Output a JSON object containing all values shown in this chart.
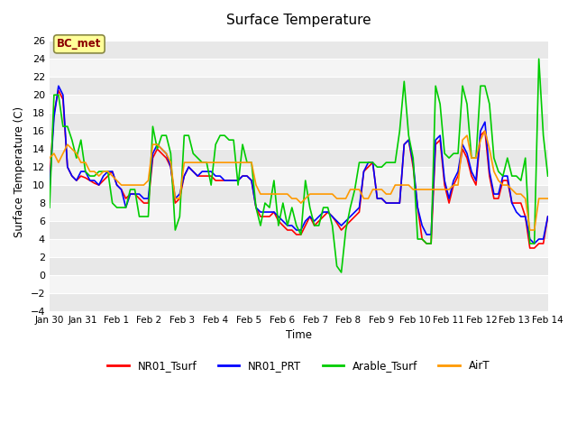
{
  "title": "Surface Temperature",
  "ylabel": "Surface Temperature (C)",
  "xlabel": "Time",
  "ylim": [
    -4,
    27
  ],
  "yticks": [
    -4,
    -2,
    0,
    2,
    4,
    6,
    8,
    10,
    12,
    14,
    16,
    18,
    20,
    22,
    24,
    26
  ],
  "xtick_labels": [
    "Jan 30",
    "Jan 31",
    "Feb 1",
    "Feb 2",
    "Feb 3",
    "Feb 4",
    "Feb 5",
    "Feb 6",
    "Feb 7",
    "Feb 8",
    "Feb 9",
    "Feb 10",
    "Feb 11",
    "Feb 12",
    "Feb 13",
    "Feb 14"
  ],
  "legend_labels": [
    "NR01_Tsurf",
    "NR01_PRT",
    "Arable_Tsurf",
    "AirT"
  ],
  "colors": [
    "#ff0000",
    "#0000ff",
    "#00cc00",
    "#ff9900"
  ],
  "annotation_text": "BC_met",
  "annotation_color": "#8b0000",
  "annotation_bg": "#ffff99",
  "background_color_light": "#e8e8e8",
  "background_color_dark": "#d0d0d0",
  "band_color1": "#e8e8e8",
  "band_color2": "#f5f5f5",
  "NR01_Tsurf": [
    10.3,
    18.0,
    20.5,
    19.5,
    12.0,
    11.0,
    10.5,
    11.0,
    10.8,
    10.5,
    10.2,
    10.0,
    10.5,
    11.0,
    11.5,
    10.0,
    9.5,
    8.5,
    9.0,
    9.0,
    8.5,
    8.0,
    8.0,
    13.0,
    14.0,
    13.5,
    13.0,
    12.0,
    8.0,
    8.5,
    11.0,
    12.0,
    11.5,
    11.0,
    11.0,
    11.0,
    11.0,
    10.5,
    10.5,
    10.5,
    10.5,
    10.5,
    10.5,
    11.0,
    11.0,
    10.5,
    7.5,
    6.5,
    6.5,
    6.5,
    7.0,
    6.0,
    5.5,
    5.0,
    5.0,
    4.5,
    4.5,
    5.5,
    6.5,
    5.5,
    6.0,
    6.5,
    7.0,
    6.5,
    5.8,
    5.0,
    5.5,
    6.0,
    6.5,
    7.0,
    11.5,
    12.0,
    12.5,
    8.5,
    8.5,
    8.0,
    8.0,
    8.0,
    8.0,
    14.5,
    15.0,
    12.0,
    7.5,
    4.0,
    3.5,
    3.5,
    14.5,
    15.0,
    10.0,
    8.0,
    10.0,
    11.0,
    14.0,
    13.0,
    11.0,
    10.0,
    15.5,
    16.0,
    11.0,
    8.5,
    8.5,
    10.5,
    10.5,
    8.0,
    8.0,
    8.0,
    6.5,
    3.0,
    3.0,
    3.5,
    3.5,
    6.5
  ],
  "NR01_PRT": [
    9.5,
    17.5,
    21.0,
    20.0,
    12.0,
    11.0,
    10.5,
    11.5,
    11.5,
    10.5,
    10.5,
    10.0,
    11.0,
    11.5,
    11.5,
    10.0,
    9.5,
    7.5,
    9.0,
    9.0,
    9.0,
    8.5,
    8.5,
    13.5,
    14.5,
    14.0,
    13.5,
    12.0,
    8.5,
    9.0,
    11.0,
    12.0,
    11.5,
    11.0,
    11.5,
    11.5,
    11.5,
    11.0,
    11.0,
    10.5,
    10.5,
    10.5,
    10.5,
    11.0,
    11.0,
    10.5,
    7.5,
    7.0,
    7.0,
    7.0,
    7.0,
    6.5,
    6.0,
    5.5,
    5.5,
    5.0,
    5.0,
    6.0,
    6.5,
    6.0,
    6.5,
    7.0,
    7.0,
    6.5,
    6.0,
    5.5,
    6.0,
    6.5,
    7.0,
    7.5,
    11.5,
    12.5,
    12.5,
    8.5,
    8.5,
    8.0,
    8.0,
    8.0,
    8.0,
    14.5,
    15.0,
    12.5,
    7.5,
    5.5,
    4.5,
    4.5,
    15.0,
    15.5,
    10.5,
    8.5,
    10.5,
    11.5,
    14.5,
    13.5,
    11.5,
    10.5,
    16.0,
    17.0,
    11.5,
    9.0,
    9.0,
    11.0,
    11.0,
    8.0,
    7.0,
    6.5,
    6.5,
    4.0,
    3.5,
    4.0,
    4.0,
    6.5
  ],
  "Arable_Tsurf": [
    7.5,
    20.0,
    20.0,
    16.5,
    16.5,
    15.0,
    13.0,
    15.0,
    11.5,
    11.0,
    11.0,
    11.5,
    11.5,
    11.5,
    8.0,
    7.5,
    7.5,
    7.5,
    9.5,
    9.5,
    6.5,
    6.5,
    6.5,
    16.5,
    14.0,
    15.5,
    15.5,
    13.5,
    5.0,
    6.5,
    15.5,
    15.5,
    13.5,
    13.0,
    12.5,
    12.5,
    10.0,
    14.5,
    15.5,
    15.5,
    15.0,
    15.0,
    10.0,
    14.5,
    12.5,
    12.5,
    7.5,
    5.5,
    8.0,
    7.5,
    10.5,
    5.5,
    8.0,
    5.5,
    7.5,
    5.5,
    4.5,
    10.5,
    7.5,
    5.5,
    5.5,
    7.5,
    7.5,
    5.5,
    1.0,
    0.3,
    5.0,
    7.5,
    9.5,
    12.5,
    12.5,
    12.5,
    12.5,
    12.0,
    12.0,
    12.5,
    12.5,
    12.5,
    16.0,
    21.5,
    15.5,
    13.0,
    4.0,
    4.0,
    3.5,
    3.5,
    21.0,
    19.0,
    13.5,
    13.0,
    13.5,
    13.5,
    21.0,
    19.0,
    13.0,
    13.0,
    21.0,
    21.0,
    19.0,
    13.0,
    11.5,
    11.0,
    13.0,
    11.0,
    11.0,
    10.5,
    13.0,
    3.5,
    3.5,
    24.0,
    15.5,
    11.0
  ],
  "AirT": [
    13.0,
    13.5,
    12.5,
    13.5,
    14.5,
    14.0,
    13.5,
    12.5,
    12.5,
    11.5,
    11.5,
    11.0,
    11.5,
    11.5,
    11.0,
    10.5,
    10.0,
    10.0,
    10.0,
    10.0,
    10.0,
    10.0,
    10.5,
    14.5,
    14.5,
    14.0,
    13.5,
    12.5,
    8.5,
    8.5,
    12.5,
    12.5,
    12.5,
    12.5,
    12.5,
    12.5,
    12.5,
    12.5,
    12.5,
    12.5,
    12.5,
    12.5,
    12.5,
    12.5,
    12.5,
    12.5,
    10.0,
    9.0,
    9.0,
    9.0,
    9.0,
    9.0,
    9.0,
    9.0,
    8.5,
    8.5,
    8.0,
    8.5,
    9.0,
    9.0,
    9.0,
    9.0,
    9.0,
    9.0,
    8.5,
    8.5,
    8.5,
    9.5,
    9.5,
    9.5,
    8.5,
    8.5,
    9.5,
    9.5,
    9.5,
    9.0,
    9.0,
    10.0,
    10.0,
    10.0,
    10.0,
    9.5,
    9.5,
    9.5,
    9.5,
    9.5,
    9.5,
    9.5,
    9.5,
    9.5,
    10.0,
    10.0,
    15.0,
    15.5,
    13.0,
    13.0,
    15.0,
    16.0,
    14.0,
    11.5,
    10.5,
    10.0,
    10.0,
    9.5,
    9.0,
    9.0,
    8.5,
    5.0,
    5.0,
    8.5,
    8.5,
    8.5
  ]
}
